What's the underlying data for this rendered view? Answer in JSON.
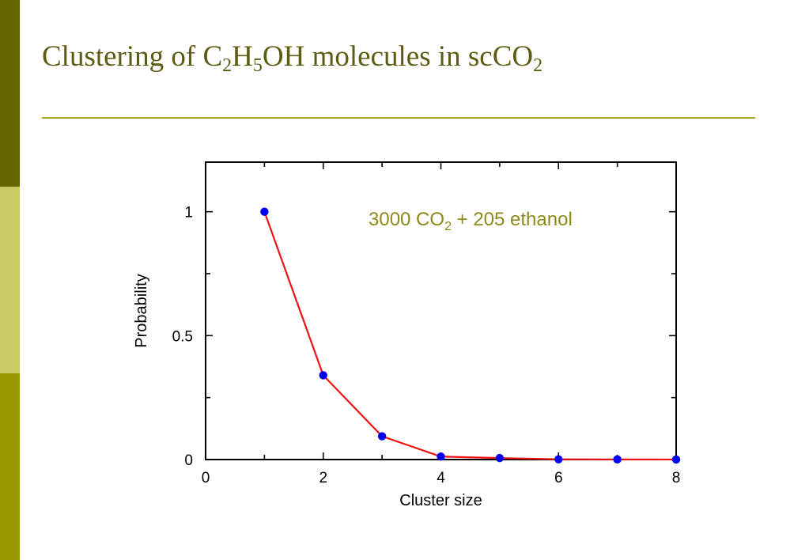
{
  "slide": {
    "title_parts": [
      {
        "text": "Clustering of C",
        "sub": false
      },
      {
        "text": "2",
        "sub": true
      },
      {
        "text": "H",
        "sub": false
      },
      {
        "text": "5",
        "sub": true
      },
      {
        "text": "OH molecules in scCO",
        "sub": false
      },
      {
        "text": "2",
        "sub": true
      }
    ]
  },
  "colors": {
    "title": "#5c5c12",
    "rule": "#a5a52a",
    "sidebar_top": "#666600",
    "sidebar_mid": "#cccc66",
    "sidebar_bottom": "#999900",
    "line": "#ee1111",
    "marker": "#0000ee",
    "annotation": "#8b8b1a"
  },
  "chart_data": {
    "type": "line",
    "xlabel": "Cluster size",
    "ylabel": "Probability",
    "xlim": [
      0,
      8
    ],
    "ylim": [
      0,
      1.2
    ],
    "xticks": [
      "0",
      "2",
      "4",
      "6",
      "8"
    ],
    "xtick_values": [
      0,
      2,
      4,
      6,
      8
    ],
    "yticks": [
      "0",
      "0.5",
      "1"
    ],
    "ytick_values": [
      0,
      0.5,
      1
    ],
    "grid": false,
    "series": [
      {
        "x": [
          1,
          2,
          3,
          4,
          5,
          6,
          7,
          8
        ],
        "y": [
          1.0,
          0.34,
          0.094,
          0.012,
          0.006,
          0.001,
          0.0005,
          0.0002
        ]
      }
    ],
    "annotation": {
      "parts": [
        {
          "text": "3000 CO",
          "sub": false
        },
        {
          "text": "2",
          "sub": true
        },
        {
          "text": " + 205 ethanol",
          "sub": false
        }
      ]
    }
  }
}
